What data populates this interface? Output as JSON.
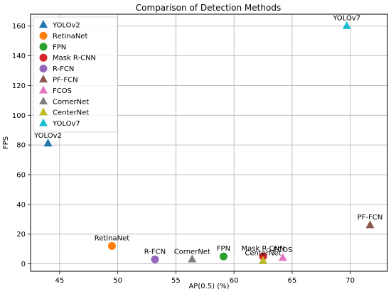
{
  "chart_data": {
    "type": "scatter",
    "title": "Comparison of Detection Methods",
    "xlabel": "AP(0.5) (%)",
    "ylabel": "FPS",
    "xlim": [
      42.5,
      73.2
    ],
    "ylim": [
      -5,
      168
    ],
    "xticks": [
      45,
      50,
      55,
      60,
      65,
      70
    ],
    "yticks": [
      0,
      20,
      40,
      60,
      80,
      100,
      120,
      140,
      160
    ],
    "grid": true,
    "legend_position": "top-left",
    "series": [
      {
        "name": "YOLOv2",
        "x": 44.0,
        "y": 81,
        "color": "#1f77b4",
        "marker": "triangle-up"
      },
      {
        "name": "RetinaNet",
        "x": 49.5,
        "y": 12,
        "color": "#ff7f0e",
        "marker": "circle"
      },
      {
        "name": "FPN",
        "x": 59.1,
        "y": 5,
        "color": "#2ca02c",
        "marker": "circle"
      },
      {
        "name": "Mask R-CNN",
        "x": 62.5,
        "y": 5,
        "color": "#d62728",
        "marker": "circle"
      },
      {
        "name": "R-FCN",
        "x": 53.2,
        "y": 3,
        "color": "#9467bd",
        "marker": "circle"
      },
      {
        "name": "PF-FCN",
        "x": 71.7,
        "y": 26,
        "color": "#8c564b",
        "marker": "triangle-up"
      },
      {
        "name": "FCOS",
        "x": 64.2,
        "y": 4,
        "color": "#e377c2",
        "marker": "triangle-up"
      },
      {
        "name": "CornerNet",
        "x": 56.4,
        "y": 3,
        "color": "#7f7f7f",
        "marker": "triangle-up"
      },
      {
        "name": "CenterNet",
        "x": 62.5,
        "y": 2,
        "color": "#bcbd22",
        "marker": "triangle-up"
      },
      {
        "name": "YOLOv7",
        "x": 69.7,
        "y": 160,
        "color": "#17becf",
        "marker": "triangle-up"
      }
    ]
  }
}
